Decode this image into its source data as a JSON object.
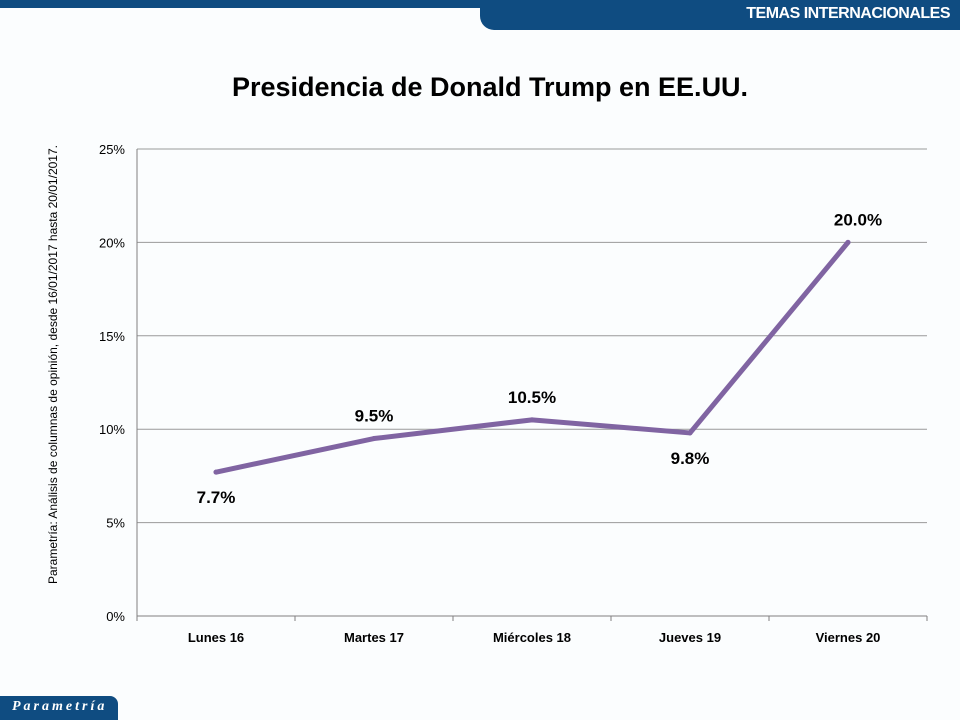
{
  "header": {
    "section": "TEMAS INTERNACIONALES"
  },
  "source_note": "Parametría: Análisis de columnas de opinión, desde 16/01/2017 hasta 20/01/2017.",
  "logo": {
    "text": "Parametría"
  },
  "chart_data": {
    "type": "line",
    "title": "Presidencia de Donald Trump en EE.UU.",
    "categories": [
      "Lunes 16",
      "Martes 17",
      "Miércoles 18",
      "Jueves 19",
      "Viernes 20"
    ],
    "values": [
      7.7,
      9.5,
      10.5,
      9.8,
      20.0
    ],
    "data_labels": [
      "7.7%",
      "9.5%",
      "10.5%",
      "9.8%",
      "20.0%"
    ],
    "yticks": [
      "0%",
      "5%",
      "10%",
      "15%",
      "20%",
      "25%"
    ],
    "ylim": [
      0,
      25
    ],
    "grid": true,
    "line_color": "#8064a2"
  }
}
